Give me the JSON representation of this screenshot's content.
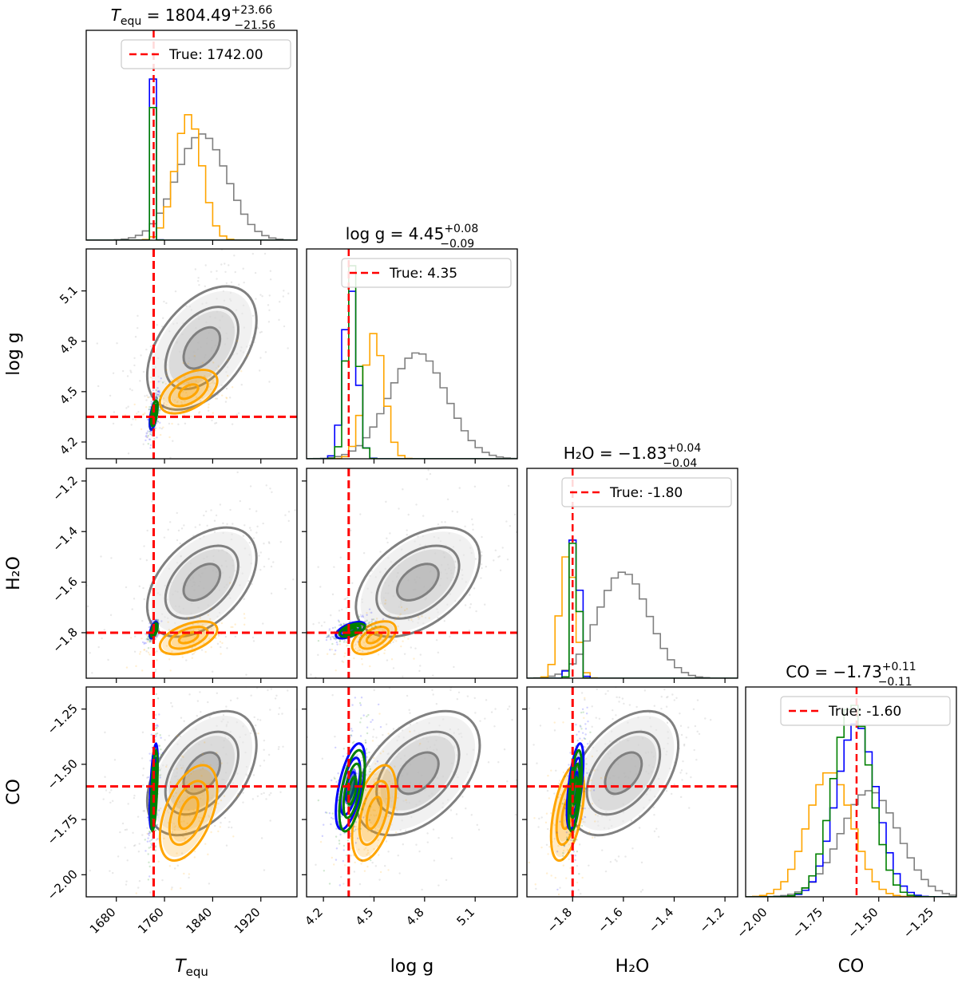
{
  "figure_type": "corner plot",
  "colors": {
    "truth": "#ff0000",
    "model_gray": "#808080",
    "model_orange": "#ffa500",
    "model_blue": "#0000ff",
    "model_green": "#008000"
  },
  "chart_data": {
    "type": "corner",
    "parameters": [
      {
        "key": "Tequ",
        "symbol": "T",
        "subscript": "equ",
        "label_plain": "T_equ",
        "median": "1804.49",
        "plus": "+23.66",
        "minus": "−21.56",
        "truth": 1742.0,
        "truth_label": "True: 1742.00",
        "range": [
          1630,
          1980
        ],
        "ticks": [
          1680,
          1760,
          1840,
          1920
        ],
        "tick_labels": [
          "1680",
          "1760",
          "1840",
          "1920"
        ]
      },
      {
        "key": "logg",
        "symbol": "log g",
        "label_plain": "log g",
        "median": "4.45",
        "plus": "+0.08",
        "minus": "−0.09",
        "truth": 4.35,
        "truth_label": "True: 4.35",
        "range": [
          4.1,
          5.35
        ],
        "ticks": [
          4.2,
          4.5,
          4.8,
          5.1
        ],
        "tick_labels": [
          "4.2",
          "4.5",
          "4.8",
          "5.1"
        ]
      },
      {
        "key": "H2O",
        "symbol": "H₂O",
        "label_plain": "H2O",
        "median": "−1.83",
        "plus": "+0.04",
        "minus": "−0.04",
        "truth": -1.8,
        "truth_label": "True: -1.80",
        "range": [
          -1.98,
          -1.15
        ],
        "ticks": [
          -1.8,
          -1.6,
          -1.4,
          -1.2
        ],
        "tick_labels": [
          "−1.8",
          "−1.6",
          "−1.4",
          "−1.2"
        ]
      },
      {
        "key": "CO",
        "symbol": "CO",
        "label_plain": "CO",
        "median": "−1.73",
        "plus": "+0.11",
        "minus": "−0.11",
        "truth": -1.6,
        "truth_label": "True: -1.60",
        "range": [
          -2.1,
          -1.15
        ],
        "ticks": [
          -2.0,
          -1.75,
          -1.5,
          -1.25
        ],
        "tick_labels": [
          "−2.00",
          "−1.75",
          "−1.50",
          "−1.25"
        ]
      }
    ],
    "posteriors": [
      {
        "name": "gray",
        "color": "#808080",
        "mean": [
          1822,
          4.76,
          -1.6,
          -1.54
        ],
        "sd": [
          42,
          0.17,
          0.1,
          0.13
        ],
        "rho": 0.45,
        "rel_height": 0.55
      },
      {
        "name": "orange",
        "color": "#ffa500",
        "mean": [
          1800,
          4.5,
          -1.82,
          -1.72
        ],
        "sd": [
          22,
          0.06,
          0.03,
          0.1
        ],
        "rho": 0.5,
        "rel_height": 0.65
      },
      {
        "name": "blue",
        "color": "#0000ff",
        "mean": [
          1742,
          4.36,
          -1.79,
          -1.6
        ],
        "sd": [
          3,
          0.04,
          0.015,
          0.09
        ],
        "rho": 0.6,
        "rel_height": 0.9
      },
      {
        "name": "green",
        "color": "#008000",
        "mean": [
          1743,
          4.37,
          -1.79,
          -1.62
        ],
        "sd": [
          2.5,
          0.035,
          0.012,
          0.085
        ],
        "rho": 0.55,
        "rel_height": 1.0
      }
    ],
    "contour_levels_sigma": [
      0.6,
      1.2,
      1.8
    ]
  }
}
